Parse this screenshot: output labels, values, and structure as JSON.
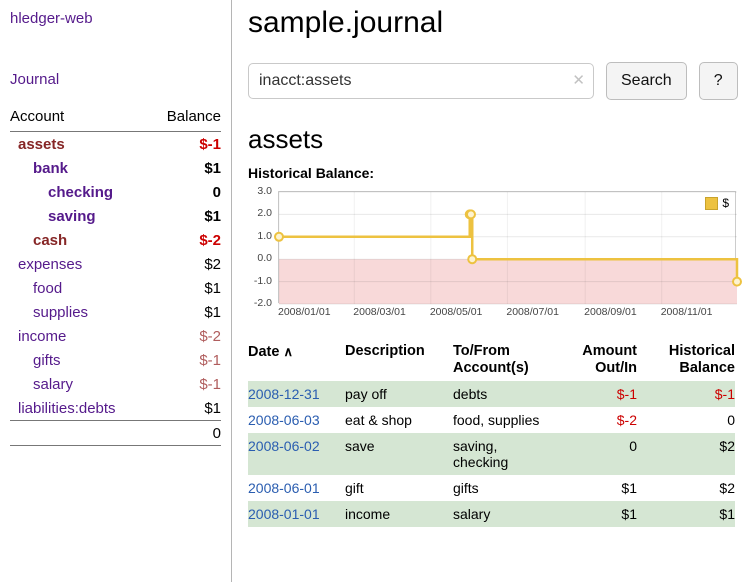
{
  "palette": {
    "link_purple": "#551a8b",
    "selected_account": "#862626",
    "negative_strong": "#cc0000",
    "negative_soft": "#b05d5d",
    "date_link": "#2a5db0",
    "row_green": "#d5e6d3",
    "chart_line": "#edc240",
    "chart_marker_fill": "#fdf3d0",
    "chart_fill_negative": "#f8d9d9"
  },
  "app": {
    "title": "hledger-web"
  },
  "sidebar": {
    "journal_link": "Journal",
    "accounts_table": {
      "account_header": "Account",
      "balance_header": "Balance",
      "rows": [
        {
          "account": "assets",
          "balance": "$-1",
          "indent": 0,
          "bold": true,
          "negative": true,
          "selected": true
        },
        {
          "account": "bank",
          "balance": "$1",
          "indent": 1,
          "bold": true,
          "negative": false,
          "selected": false
        },
        {
          "account": "checking",
          "balance": "0",
          "indent": 2,
          "bold": true,
          "negative": false,
          "selected": false
        },
        {
          "account": "saving",
          "balance": "$1",
          "indent": 2,
          "bold": true,
          "negative": false,
          "selected": false
        },
        {
          "account": "cash",
          "balance": "$-2",
          "indent": 1,
          "bold": true,
          "negative": true,
          "selected": true
        },
        {
          "account": "expenses",
          "balance": "$2",
          "indent": 0,
          "bold": false,
          "negative": false,
          "selected": false
        },
        {
          "account": "food",
          "balance": "$1",
          "indent": 1,
          "bold": false,
          "negative": false,
          "selected": false
        },
        {
          "account": "supplies",
          "balance": "$1",
          "indent": 1,
          "bold": false,
          "negative": false,
          "selected": false
        },
        {
          "account": "income",
          "balance": "$-2",
          "indent": 0,
          "bold": false,
          "negative": true,
          "selected": false
        },
        {
          "account": "gifts",
          "balance": "$-1",
          "indent": 1,
          "bold": false,
          "negative": true,
          "selected": false
        },
        {
          "account": "salary",
          "balance": "$-1",
          "indent": 1,
          "bold": false,
          "negative": true,
          "selected": false
        },
        {
          "account": "liabilities:debts",
          "balance": "$1",
          "indent": 0,
          "bold": false,
          "negative": false,
          "selected": false
        }
      ],
      "total": "0"
    }
  },
  "header": {
    "title": "sample.journal"
  },
  "search": {
    "value": "inacct:assets",
    "clear_label": "✕",
    "button_label": "Search",
    "help_label": "?"
  },
  "main": {
    "account_title": "assets"
  },
  "chart_data": {
    "type": "line",
    "step": true,
    "title": "Historical Balance:",
    "series": [
      {
        "name": "$",
        "points": [
          [
            "2008-01-01",
            1
          ],
          [
            "2008-06-01",
            2
          ],
          [
            "2008-06-02",
            2
          ],
          [
            "2008-06-03",
            0
          ],
          [
            "2008-12-31",
            -1
          ]
        ]
      }
    ],
    "x_range": [
      "2008-01-01",
      "2008-12-31"
    ],
    "ylim": [
      -2,
      3
    ],
    "y_ticks": [
      "3.0",
      "2.0",
      "1.0",
      "0.0",
      "-1.0",
      "-2.0"
    ],
    "x_ticks": [
      "2008/01/01",
      "2008/03/01",
      "2008/05/01",
      "2008/07/01",
      "2008/09/01",
      "2008/11/01"
    ],
    "legend": "$",
    "legend_position": "top-right",
    "grid": true,
    "negative_region_shaded": true
  },
  "register": {
    "headers": {
      "date": "Date",
      "sort_indicator": "∧",
      "description": "Description",
      "accounts": "To/From Account(s)",
      "amount": "Amount Out/In",
      "balance": "Historical Balance"
    },
    "rows": [
      {
        "date": "2008-12-31",
        "description": "pay off",
        "accounts": "debts",
        "amount": "$-1",
        "balance": "$-1",
        "highlight": true
      },
      {
        "date": "2008-06-03",
        "description": "eat & shop",
        "accounts": "food, supplies",
        "amount": "$-2",
        "balance": "0",
        "highlight": false
      },
      {
        "date": "2008-06-02",
        "description": "save",
        "accounts": "saving, checking",
        "amount": "0",
        "balance": "$2",
        "highlight": true
      },
      {
        "date": "2008-06-01",
        "description": "gift",
        "accounts": "gifts",
        "amount": "$1",
        "balance": "$2",
        "highlight": false
      },
      {
        "date": "2008-01-01",
        "description": "income",
        "accounts": "salary",
        "amount": "$1",
        "balance": "$1",
        "highlight": true
      }
    ]
  }
}
